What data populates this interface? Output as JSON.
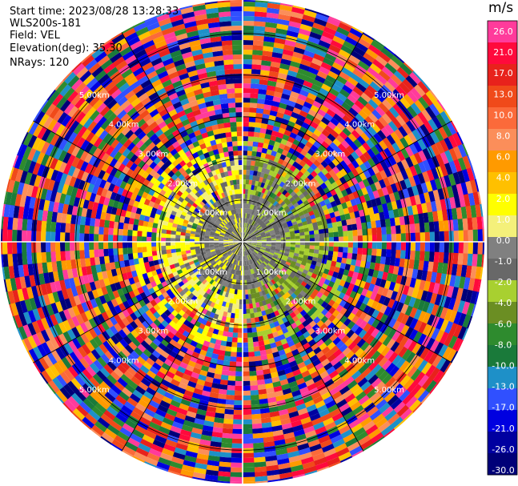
{
  "header": {
    "start_time": "Start time: 2023/08/28 13:28:33",
    "instrument": "WLS200s-181",
    "field": "Field: VEL",
    "elevation": "Elevation(deg): 35.30",
    "nrays": "NRays: 120"
  },
  "chart_data": {
    "type": "heatmap",
    "projection": "polar-ppi",
    "field": "VEL",
    "units": "m/s",
    "range_ring_labels": [
      "1.00km",
      "2.00km",
      "3.00km",
      "4.00km",
      "5.00km"
    ],
    "range_rings_km": [
      1,
      2,
      3,
      4,
      5
    ],
    "max_range_km": 5.8,
    "nrays": 120,
    "grid": true,
    "colorbar": {
      "unit": "m/s",
      "ticks": [
        "26.0",
        "21.0",
        "17.0",
        "13.0",
        "10.0",
        "8.0",
        "6.0",
        "4.0",
        "2.0",
        "1.0",
        "0.0",
        "-1.0",
        "-2.0",
        "-4.0",
        "-6.0",
        "-8.0",
        "-10.0",
        "-13.0",
        "-17.0",
        "-21.0",
        "-26.0",
        "-30.0"
      ],
      "colors": [
        "#ff3b9b",
        "#ff0a3c",
        "#e8221c",
        "#f04a1a",
        "#fb6a3a",
        "#fb8e5a",
        "#ff9a00",
        "#ffc000",
        "#ffff00",
        "#f4f07a",
        "#808080",
        "#686868",
        "#a8d030",
        "#6b8e23",
        "#2e8b2e",
        "#1a7a3a",
        "#1e90c8",
        "#3050ff",
        "#0000e0",
        "#0000a0",
        "#000078"
      ]
    }
  }
}
